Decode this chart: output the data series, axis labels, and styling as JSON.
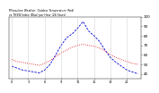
{
  "title": "Milwaukee Weather Outdoor Temperature (Red) vs THSW Index (Blue) per Hour (24 Hours)",
  "hours": [
    0,
    1,
    2,
    3,
    4,
    5,
    6,
    7,
    8,
    9,
    10,
    11,
    12,
    13,
    14,
    15,
    16,
    17,
    18,
    19,
    20,
    21,
    22,
    23
  ],
  "temp_red": [
    55,
    53,
    52,
    51,
    50,
    49,
    51,
    54,
    58,
    62,
    65,
    68,
    70,
    71,
    70,
    69,
    67,
    64,
    60,
    57,
    55,
    53,
    51,
    50
  ],
  "thsw_blue": [
    48,
    46,
    44,
    43,
    42,
    41,
    44,
    50,
    60,
    70,
    78,
    82,
    88,
    95,
    85,
    80,
    74,
    65,
    57,
    52,
    48,
    44,
    42,
    40
  ],
  "red_color": "#dd0000",
  "blue_color": "#0000dd",
  "bg_color": "#ffffff",
  "grid_color": "#aaaaaa",
  "y_min": 35,
  "y_max": 100,
  "y_ticks": [
    40,
    50,
    60,
    70,
    80,
    90,
    100
  ]
}
